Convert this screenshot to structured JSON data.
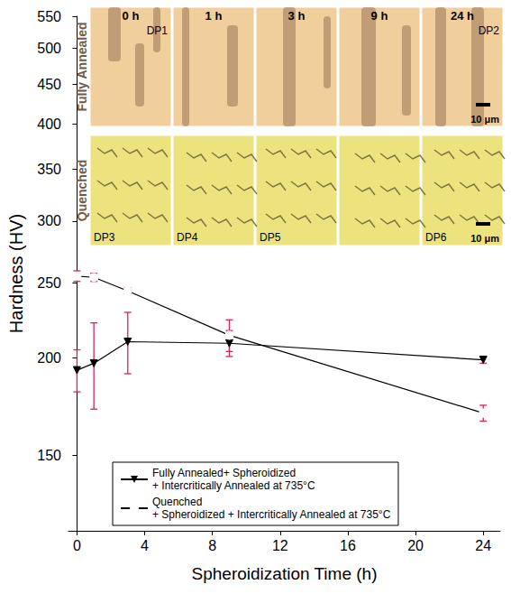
{
  "chart_data": {
    "type": "line",
    "x_label": "Spheroidization Time (h)",
    "y_label": "Hardness (HV)",
    "x": [
      0,
      1,
      3,
      9,
      24
    ],
    "xlim": [
      -0.5,
      25
    ],
    "xticks": [
      0,
      4,
      8,
      12,
      16,
      20,
      24
    ],
    "ylim": [
      120,
      550
    ],
    "yticks": [
      150,
      200,
      250,
      300,
      350,
      400,
      450,
      500,
      550
    ],
    "log": "y",
    "grid": false,
    "legend": "lower left",
    "series": [
      {
        "name": "Fully Annealed+ Spheroidized + Intercritically Annealed at 735°C",
        "color": "#000000",
        "marker": "triangle-down",
        "line_style": "solid",
        "values": [
          193,
          197,
          210,
          209,
          199
        ],
        "errors": [
          12,
          25,
          19,
          8,
          2
        ]
      },
      {
        "name": "Quenched + Spheroidized + Intercritically Annealed at 735°C",
        "color": "#000000",
        "marker": "circle-open",
        "line_style": "solid",
        "values": [
          255,
          254,
          244,
          214,
          170
        ],
        "errors": [
          4,
          3,
          2,
          10,
          4
        ]
      }
    ],
    "insets": {
      "rows": [
        {
          "label": "Fully Annealed",
          "color": "#f0cf9c",
          "scale_bar": "10 μm",
          "panels": [
            {
              "time": "0 h",
              "tag": "DP1"
            },
            {
              "time": "1 h"
            },
            {
              "time": "3 h"
            },
            {
              "time": "9 h"
            },
            {
              "time": "24 h",
              "tag": "DP2"
            }
          ]
        },
        {
          "label": "Quenched",
          "color": "#ece37e",
          "scale_bar": "10 μm",
          "panels": [
            {
              "tag": "DP3"
            },
            {
              "tag": "DP4"
            },
            {
              "tag": "DP5"
            },
            {},
            {
              "tag": "DP6"
            }
          ]
        }
      ]
    }
  }
}
